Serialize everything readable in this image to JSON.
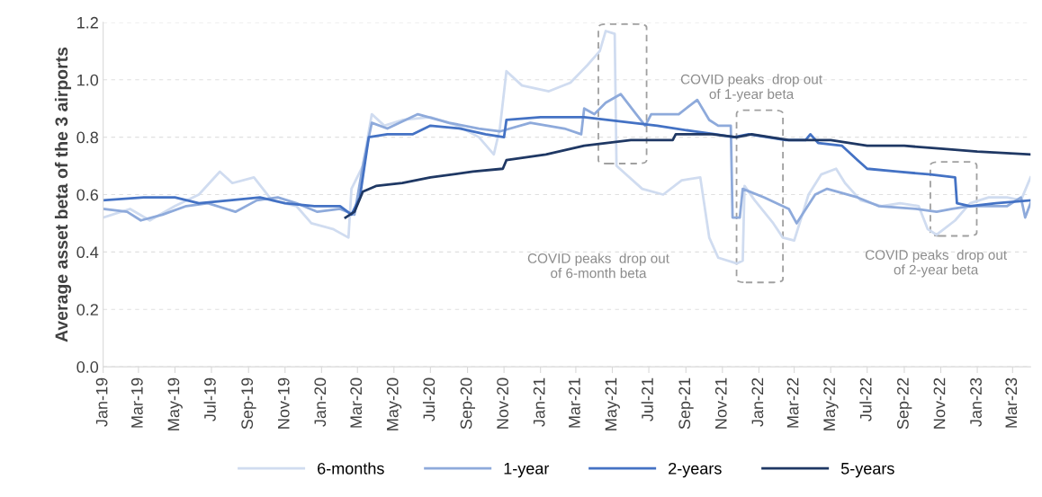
{
  "chart_data": {
    "type": "line",
    "ylabel": "Average asset beta of the 3 airports",
    "xlim": [
      "2019-01-01",
      "2023-03-31"
    ],
    "xticks": [
      {
        "value": "2019-01-01",
        "label": "Jan-19"
      },
      {
        "value": "2019-03-01",
        "label": "Mar-19"
      },
      {
        "value": "2019-05-01",
        "label": "May-19"
      },
      {
        "value": "2019-07-01",
        "label": "Jul-19"
      },
      {
        "value": "2019-09-01",
        "label": "Sep-19"
      },
      {
        "value": "2019-11-01",
        "label": "Nov-19"
      },
      {
        "value": "2020-01-01",
        "label": "Jan-20"
      },
      {
        "value": "2020-03-01",
        "label": "Mar-20"
      },
      {
        "value": "2020-05-01",
        "label": "May-20"
      },
      {
        "value": "2020-07-01",
        "label": "Jul-20"
      },
      {
        "value": "2020-09-01",
        "label": "Sep-20"
      },
      {
        "value": "2020-11-01",
        "label": "Nov-20"
      },
      {
        "value": "2021-01-01",
        "label": "Jan-21"
      },
      {
        "value": "2021-03-01",
        "label": "Mar-21"
      },
      {
        "value": "2021-05-01",
        "label": "May-21"
      },
      {
        "value": "2021-07-01",
        "label": "Jul-21"
      },
      {
        "value": "2021-09-01",
        "label": "Sep-21"
      },
      {
        "value": "2021-11-01",
        "label": "Nov-21"
      },
      {
        "value": "2022-01-01",
        "label": "Jan-22"
      },
      {
        "value": "2022-03-01",
        "label": "Mar-22"
      },
      {
        "value": "2022-05-01",
        "label": "May-22"
      },
      {
        "value": "2022-07-01",
        "label": "Jul-22"
      },
      {
        "value": "2022-09-01",
        "label": "Sep-22"
      },
      {
        "value": "2022-11-01",
        "label": "Nov-22"
      },
      {
        "value": "2023-01-01",
        "label": "Jan-23"
      },
      {
        "value": "2023-03-01",
        "label": "Mar-23"
      }
    ],
    "ylim": [
      0,
      1.2
    ],
    "yticks": [
      {
        "value": 0,
        "label": "0.0"
      },
      {
        "value": 0.2,
        "label": "0.2"
      },
      {
        "value": 0.4,
        "label": "0.4"
      },
      {
        "value": 0.6,
        "label": "0.6"
      },
      {
        "value": 0.8,
        "label": "0.8"
      },
      {
        "value": 1.0,
        "label": "1.0"
      },
      {
        "value": 1.2,
        "label": "1.2"
      }
    ],
    "grid": "y",
    "legend": "bottom",
    "marker": "none",
    "line_style": "solid",
    "series": [
      {
        "name": "6-months",
        "color": "#d0dcf0",
        "x": [
          "2019-01-01",
          "2019-02-15",
          "2019-03-20",
          "2019-05-01",
          "2019-06-10",
          "2019-07-15",
          "2019-08-05",
          "2019-09-10",
          "2019-10-10",
          "2019-11-20",
          "2019-12-15",
          "2020-01-20",
          "2020-02-15",
          "2020-02-20",
          "2020-03-10",
          "2020-03-25",
          "2020-04-15",
          "2020-05-15",
          "2020-07-01",
          "2020-08-15",
          "2020-09-20",
          "2020-10-15",
          "2020-10-25",
          "2020-11-05",
          "2020-12-01",
          "2021-01-15",
          "2021-02-20",
          "2021-03-20",
          "2021-04-10",
          "2021-04-20",
          "2021-05-05",
          "2021-05-08",
          "2021-06-20",
          "2021-07-25",
          "2021-08-25",
          "2021-09-25",
          "2021-10-10",
          "2021-10-25",
          "2021-11-25",
          "2021-12-05",
          "2021-12-08",
          "2021-12-25",
          "2022-01-25",
          "2022-02-10",
          "2022-03-01",
          "2022-03-25",
          "2022-04-15",
          "2022-05-10",
          "2022-05-25",
          "2022-06-20",
          "2022-07-25",
          "2022-08-25",
          "2022-09-25",
          "2022-10-10",
          "2022-10-25",
          "2022-11-25",
          "2022-12-20",
          "2023-01-20",
          "2023-02-20",
          "2023-03-15",
          "2023-03-31"
        ],
        "values": [
          0.52,
          0.55,
          0.51,
          0.56,
          0.6,
          0.68,
          0.64,
          0.66,
          0.58,
          0.56,
          0.5,
          0.48,
          0.45,
          0.62,
          0.7,
          0.88,
          0.84,
          0.86,
          0.87,
          0.84,
          0.8,
          0.74,
          0.83,
          1.03,
          0.98,
          0.96,
          0.99,
          1.05,
          1.1,
          1.17,
          1.16,
          0.7,
          0.62,
          0.6,
          0.65,
          0.66,
          0.45,
          0.38,
          0.36,
          0.37,
          0.63,
          0.58,
          0.5,
          0.45,
          0.44,
          0.6,
          0.67,
          0.69,
          0.64,
          0.58,
          0.56,
          0.57,
          0.56,
          0.48,
          0.46,
          0.51,
          0.57,
          0.59,
          0.59,
          0.58,
          0.66
        ]
      },
      {
        "name": "1-year",
        "color": "#8eaadb",
        "x": [
          "2019-01-01",
          "2019-02-10",
          "2019-03-05",
          "2019-04-10",
          "2019-05-20",
          "2019-06-25",
          "2019-08-10",
          "2019-09-15",
          "2019-10-20",
          "2019-11-20",
          "2019-12-25",
          "2020-02-01",
          "2020-02-25",
          "2020-03-10",
          "2020-03-25",
          "2020-04-20",
          "2020-06-10",
          "2020-08-01",
          "2020-09-20",
          "2020-10-25",
          "2020-12-15",
          "2021-02-10",
          "2021-03-10",
          "2021-03-15",
          "2021-04-01",
          "2021-04-20",
          "2021-05-15",
          "2021-06-10",
          "2021-06-25",
          "2021-07-05",
          "2021-08-20",
          "2021-09-20",
          "2021-10-10",
          "2021-10-25",
          "2021-11-15",
          "2021-11-18",
          "2021-11-30",
          "2021-12-05",
          "2022-01-10",
          "2022-02-20",
          "2022-03-05",
          "2022-04-05",
          "2022-04-25",
          "2022-06-15",
          "2022-07-20",
          "2022-09-20",
          "2022-10-25",
          "2022-11-20",
          "2022-12-20",
          "2023-02-20",
          "2023-03-15",
          "2023-03-22",
          "2023-03-31"
        ],
        "values": [
          0.55,
          0.54,
          0.51,
          0.53,
          0.56,
          0.57,
          0.54,
          0.58,
          0.59,
          0.57,
          0.54,
          0.55,
          0.53,
          0.7,
          0.85,
          0.83,
          0.88,
          0.85,
          0.83,
          0.82,
          0.85,
          0.83,
          0.81,
          0.9,
          0.88,
          0.92,
          0.95,
          0.88,
          0.84,
          0.88,
          0.88,
          0.93,
          0.86,
          0.84,
          0.84,
          0.52,
          0.52,
          0.62,
          0.59,
          0.55,
          0.5,
          0.6,
          0.62,
          0.59,
          0.56,
          0.55,
          0.54,
          0.55,
          0.56,
          0.56,
          0.59,
          0.52,
          0.57
        ]
      },
      {
        "name": "2-years",
        "color": "#4472c4",
        "x": [
          "2019-01-01",
          "2019-03-10",
          "2019-05-01",
          "2019-06-10",
          "2019-08-01",
          "2019-09-20",
          "2019-11-01",
          "2019-12-20",
          "2020-02-01",
          "2020-02-20",
          "2020-03-05",
          "2020-03-20",
          "2020-04-20",
          "2020-06-01",
          "2020-07-01",
          "2020-08-20",
          "2020-10-01",
          "2020-11-01",
          "2020-11-05",
          "2021-01-01",
          "2021-03-15",
          "2021-07-15",
          "2021-09-15",
          "2021-10-20",
          "2021-11-20",
          "2021-12-15",
          "2022-02-15",
          "2022-03-20",
          "2022-03-28",
          "2022-04-10",
          "2022-05-20",
          "2022-06-15",
          "2022-07-01",
          "2022-08-20",
          "2022-10-15",
          "2022-11-25",
          "2022-11-28",
          "2022-12-20",
          "2023-02-01",
          "2023-03-31"
        ],
        "values": [
          0.58,
          0.59,
          0.59,
          0.57,
          0.58,
          0.59,
          0.57,
          0.56,
          0.56,
          0.53,
          0.59,
          0.8,
          0.81,
          0.81,
          0.84,
          0.83,
          0.81,
          0.8,
          0.86,
          0.87,
          0.87,
          0.84,
          0.82,
          0.81,
          0.8,
          0.81,
          0.79,
          0.79,
          0.81,
          0.78,
          0.77,
          0.72,
          0.69,
          0.68,
          0.67,
          0.66,
          0.57,
          0.56,
          0.57,
          0.58
        ]
      },
      {
        "name": "5-years",
        "color": "#1f3864",
        "x": [
          "2020-02-10",
          "2020-02-25",
          "2020-03-10",
          "2020-04-01",
          "2020-05-15",
          "2020-07-01",
          "2020-09-10",
          "2020-10-30",
          "2020-11-05",
          "2021-01-10",
          "2021-03-15",
          "2021-06-01",
          "2021-08-10",
          "2021-08-15",
          "2021-10-15",
          "2021-11-25",
          "2021-12-20",
          "2022-02-20",
          "2022-05-01",
          "2022-07-01",
          "2022-09-01",
          "2022-11-01",
          "2023-01-01",
          "2023-03-31"
        ],
        "values": [
          0.52,
          0.54,
          0.61,
          0.63,
          0.64,
          0.66,
          0.68,
          0.69,
          0.72,
          0.74,
          0.77,
          0.79,
          0.79,
          0.81,
          0.81,
          0.8,
          0.81,
          0.79,
          0.79,
          0.77,
          0.77,
          0.76,
          0.75,
          0.74
        ]
      }
    ],
    "annotations": [
      "COVID peaks  drop out\nof 6-month beta",
      "COVID peaks  drop out\nof 1-year beta",
      "COVID peaks  drop out\nof 2-year beta"
    ]
  }
}
